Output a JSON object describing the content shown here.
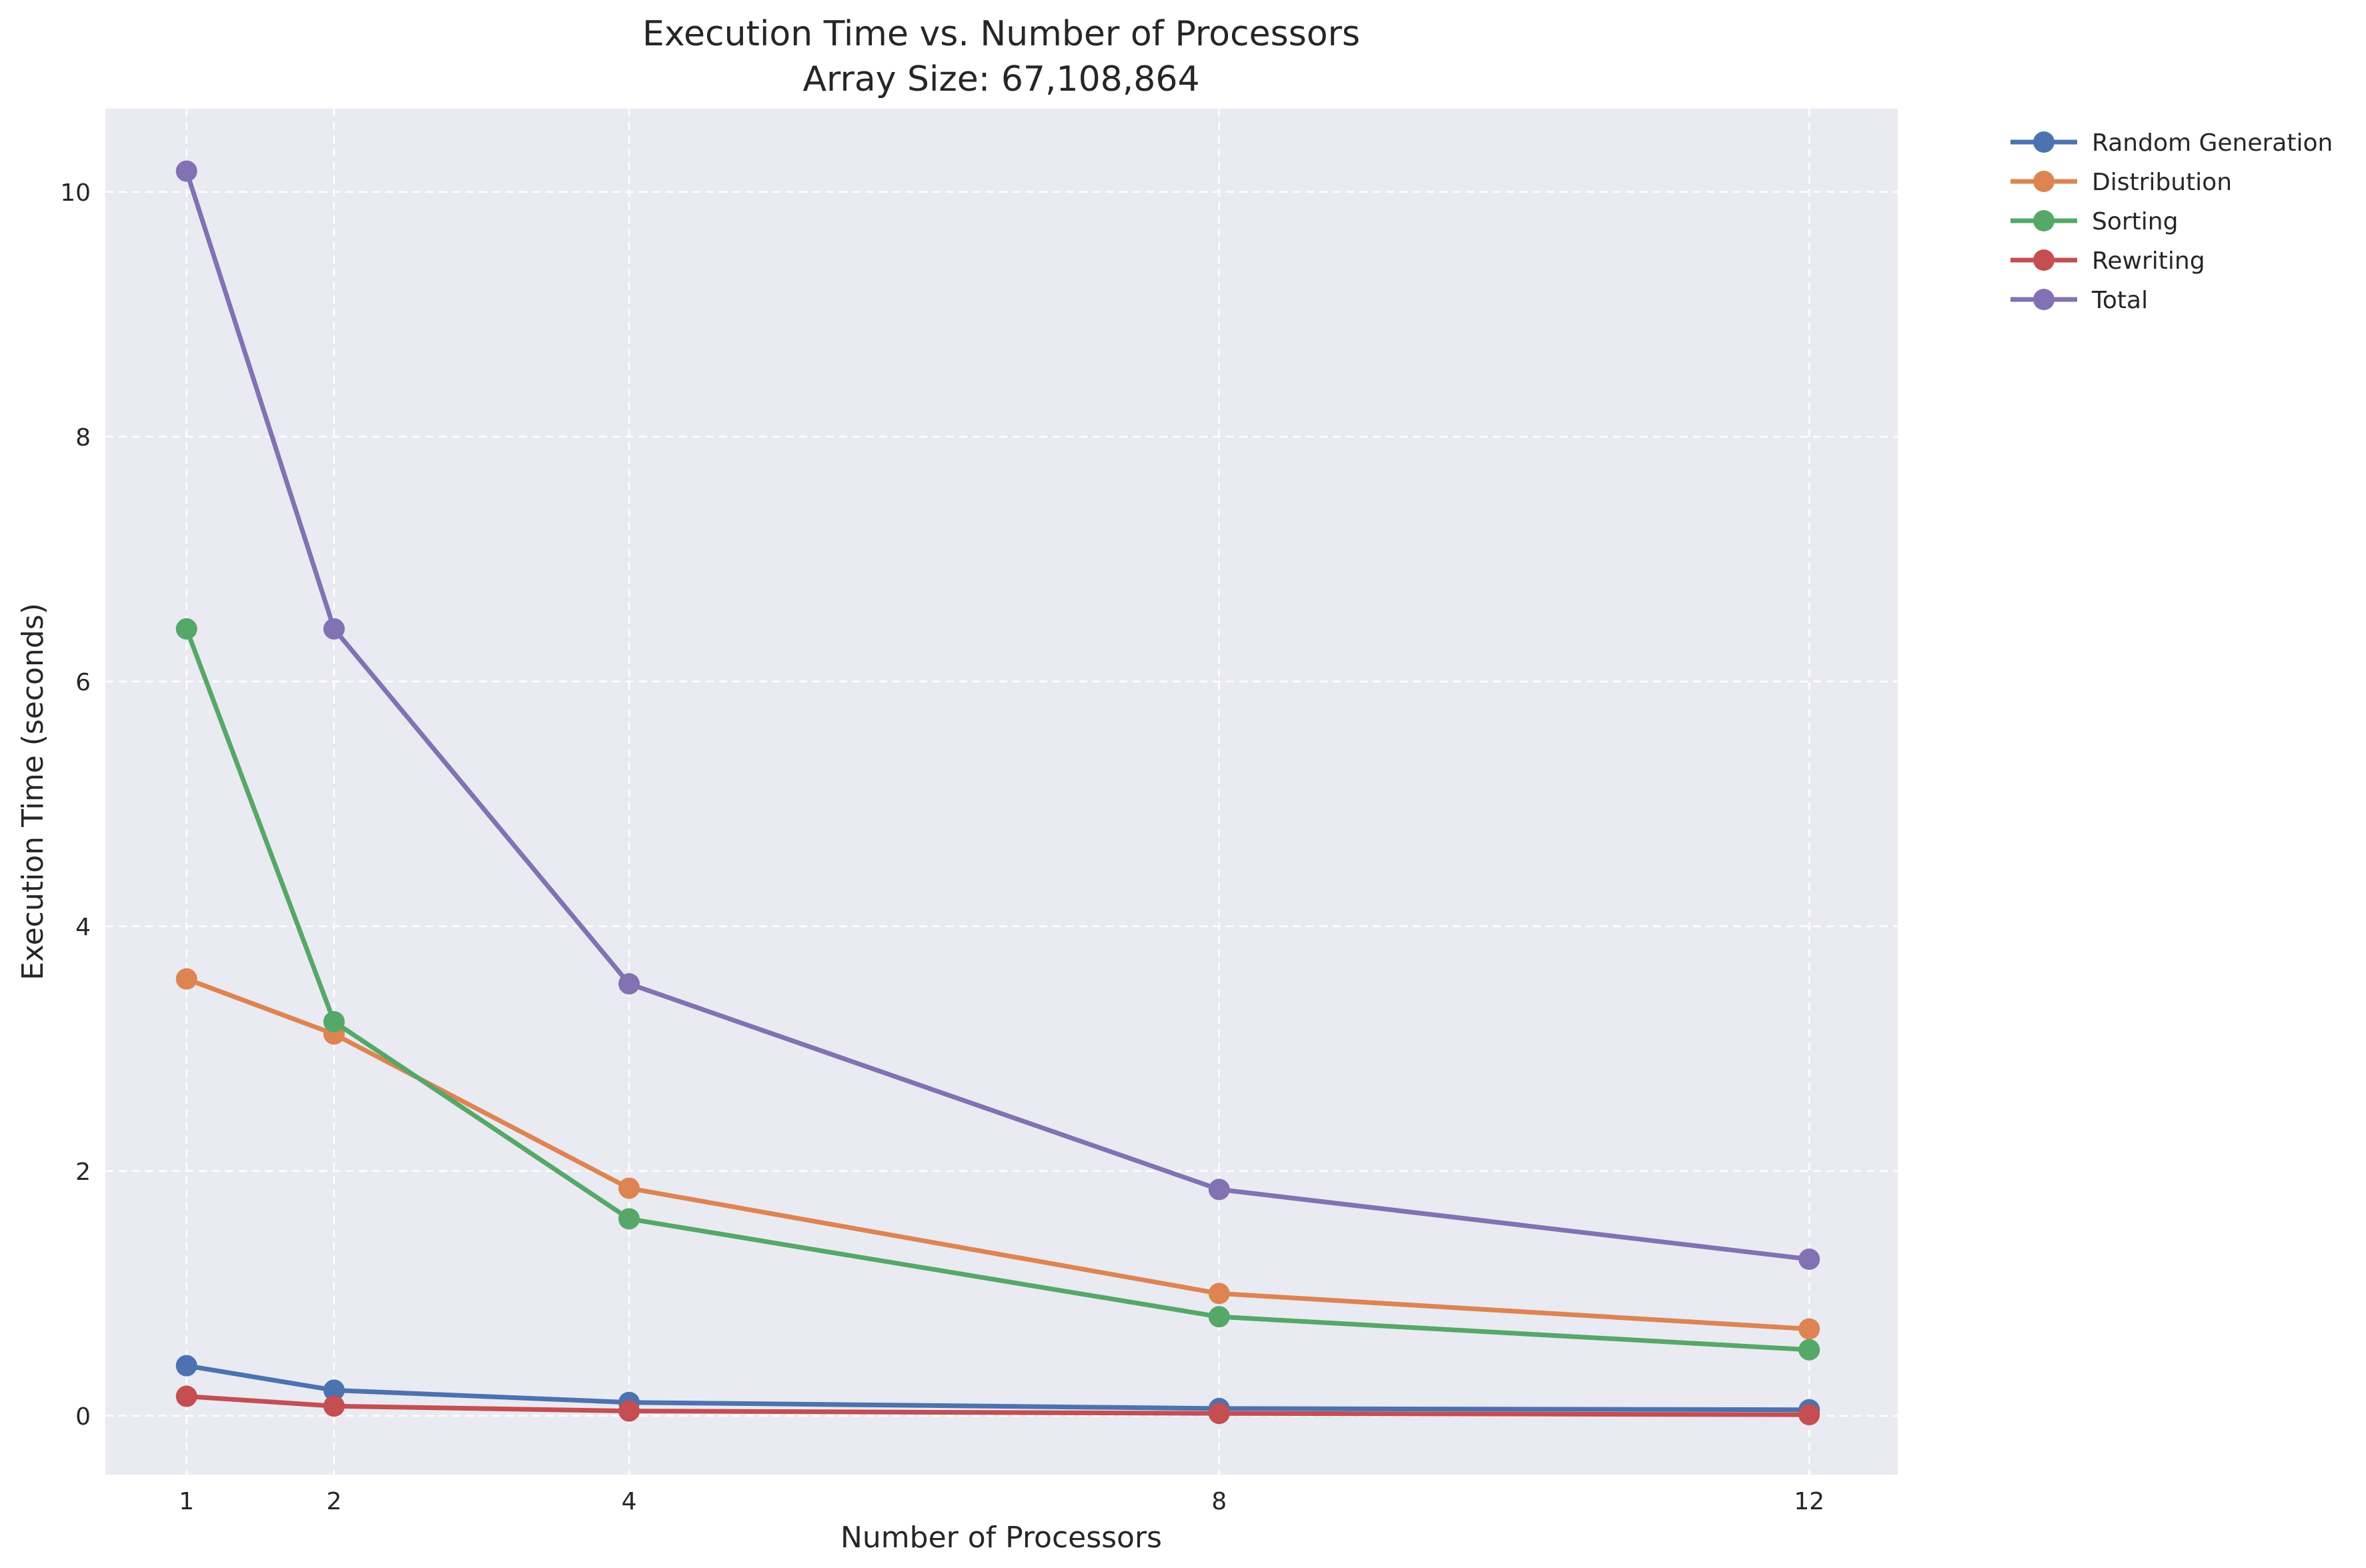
{
  "chart_data": {
    "type": "line",
    "title": "Execution Time vs. Number of Processors",
    "subtitle": "Array Size: 67,108,864",
    "xlabel": "Number of Processors",
    "ylabel": "Execution Time (seconds)",
    "x": [
      1,
      2,
      4,
      8,
      12
    ],
    "x_ticks": [
      1,
      2,
      4,
      8,
      12
    ],
    "y_ticks": [
      0,
      2,
      4,
      6,
      8,
      10
    ],
    "xlim": [
      0.45,
      12.6
    ],
    "ylim": [
      -0.48,
      10.68
    ],
    "grid": true,
    "legend_position": "outside-top-right",
    "background_color": "#eaeaf2",
    "series": [
      {
        "name": "Random Generation",
        "color": "#4c72b0",
        "values": [
          0.41,
          0.21,
          0.11,
          0.06,
          0.05
        ]
      },
      {
        "name": "Distribution",
        "color": "#dd8452",
        "values": [
          3.57,
          3.12,
          1.86,
          1.0,
          0.71
        ]
      },
      {
        "name": "Sorting",
        "color": "#55a868",
        "values": [
          6.43,
          3.22,
          1.61,
          0.81,
          0.54
        ]
      },
      {
        "name": "Rewriting",
        "color": "#c44e52",
        "values": [
          0.16,
          0.08,
          0.04,
          0.02,
          0.01
        ]
      },
      {
        "name": "Total",
        "color": "#8172b3",
        "values": [
          10.17,
          6.43,
          3.53,
          1.85,
          1.28
        ]
      }
    ]
  }
}
